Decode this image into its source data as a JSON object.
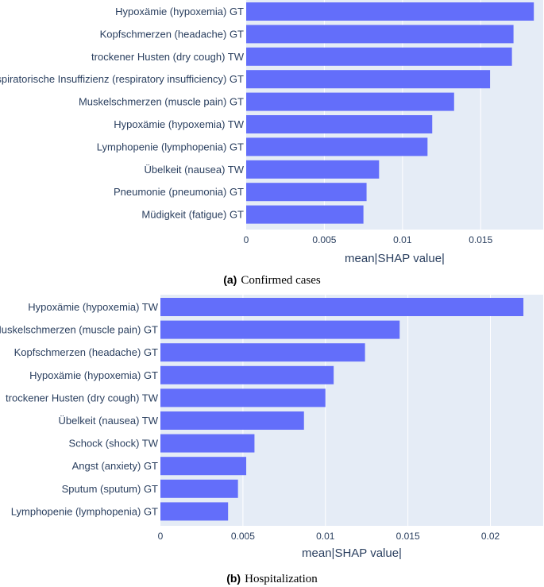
{
  "chart_data": [
    {
      "type": "bar",
      "orientation": "horizontal",
      "categories": [
        "Hypoxämie (hypoxemia) GT",
        "Kopfschmerzen (headache) GT",
        "trockener Husten (dry cough) TW",
        "respiratorische Insuffizienz (respiratory insufficiency) GT",
        "Muskelschmerzen (muscle pain) GT",
        "Hypoxämie (hypoxemia) TW",
        "Lymphopenie (lymphopenia) GT",
        "Übelkeit (nausea) TW",
        "Pneumonie (pneumonia) GT",
        "Müdigkeit (fatigue) GT"
      ],
      "values": [
        0.0184,
        0.0171,
        0.017,
        0.0156,
        0.0133,
        0.0119,
        0.0116,
        0.0085,
        0.0077,
        0.0075
      ],
      "xlabel": "mean|SHAP value|",
      "xlim": [
        0,
        0.019
      ],
      "xticks": [
        0,
        0.005,
        0.01,
        0.015
      ],
      "xtick_labels": [
        "0",
        "0.005",
        "0.01",
        "0.015"
      ],
      "caption_letter": "(a)",
      "caption_text": "Confirmed cases",
      "bar_color": "#636efa",
      "plot_bg": "#e5ecf6"
    },
    {
      "type": "bar",
      "orientation": "horizontal",
      "categories": [
        "Hypoxämie (hypoxemia) TW",
        "Muskelschmerzen (muscle pain) GT",
        "Kopfschmerzen (headache) GT",
        "Hypoxämie (hypoxemia) GT",
        "trockener Husten (dry cough) TW",
        "Übelkeit (nausea) TW",
        "Schock (shock) TW",
        "Angst (anxiety) GT",
        "Sputum (sputum) GT",
        "Lymphopenie (lymphopenia) GT"
      ],
      "values": [
        0.022,
        0.0145,
        0.0124,
        0.0105,
        0.01,
        0.0087,
        0.0057,
        0.0052,
        0.0047,
        0.0041
      ],
      "xlabel": "mean|SHAP value|",
      "xlim": [
        0,
        0.0232
      ],
      "xticks": [
        0,
        0.005,
        0.01,
        0.015,
        0.02
      ],
      "xtick_labels": [
        "0",
        "0.005",
        "0.01",
        "0.015",
        "0.02"
      ],
      "caption_letter": "(b)",
      "caption_text": "Hospitalization",
      "bar_color": "#636efa",
      "plot_bg": "#e5ecf6"
    }
  ]
}
